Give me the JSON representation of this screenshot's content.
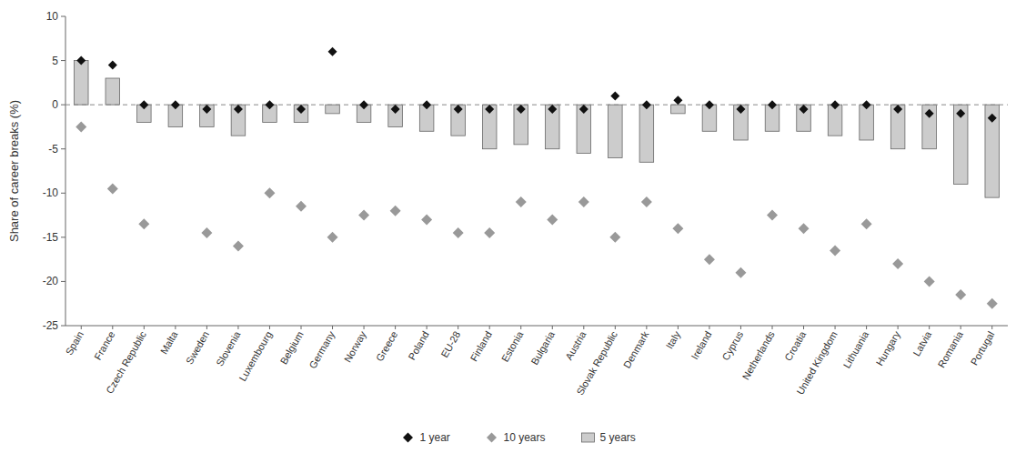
{
  "chart_data": {
    "type": "bar",
    "y_label": "Share of career breaks (%)",
    "categories": [
      "Spain",
      "France",
      "Czech Republic",
      "Malta",
      "Sweden",
      "Slovenia",
      "Luxembourg",
      "Belgium",
      "Germany",
      "Norway",
      "Greece",
      "Poland",
      "EU-28",
      "Finland",
      "Estonia",
      "Bulgaria",
      "Austria",
      "Slovak Republic",
      "Denmark",
      "Italy",
      "Ireland",
      "Cyprus",
      "Netherlands",
      "Croatia",
      "United Kingdom",
      "Lithuania",
      "Hungary",
      "Latvia",
      "Romania",
      "Portugal"
    ],
    "series": [
      {
        "name": "1 year",
        "type": "scatter",
        "marker": "diamond",
        "color": "#111111",
        "values": [
          5.0,
          4.5,
          0.0,
          0.0,
          -0.5,
          -0.5,
          0.0,
          -0.5,
          6.0,
          0.0,
          -0.5,
          0.0,
          -0.5,
          -0.5,
          -0.5,
          -0.5,
          -0.5,
          1.0,
          0.0,
          0.5,
          0.0,
          -0.5,
          0.0,
          -0.5,
          0.0,
          0.0,
          -0.5,
          -1.0,
          -1.0,
          -1.5
        ]
      },
      {
        "name": "10 years",
        "type": "scatter",
        "marker": "diamond",
        "color": "#999999",
        "values": [
          -2.5,
          -9.5,
          -13.5,
          null,
          -14.5,
          -16.0,
          -10.0,
          -11.5,
          -15.0,
          -12.5,
          -12.0,
          -13.0,
          -14.5,
          -14.5,
          -11.0,
          -13.0,
          -11.0,
          -15.0,
          -11.0,
          -14.0,
          -17.5,
          -19.0,
          -12.5,
          -14.0,
          -16.5,
          -13.5,
          -18.0,
          -20.0,
          -21.5,
          -22.5
        ]
      },
      {
        "name": "5 years",
        "type": "bar",
        "color": "#cccccc",
        "values": [
          5.0,
          3.0,
          -2.0,
          -2.5,
          -2.5,
          -3.5,
          -2.0,
          -2.0,
          -1.0,
          -2.0,
          -2.5,
          -3.0,
          -3.5,
          -5.0,
          -4.5,
          -5.0,
          -5.5,
          -6.0,
          -6.5,
          -1.0,
          -3.0,
          -4.0,
          -3.0,
          -3.0,
          -3.5,
          -4.0,
          -5.0,
          -5.0,
          -9.0,
          -10.5
        ]
      }
    ],
    "ylim": [
      -25,
      10
    ],
    "yticks": [
      -25,
      -20,
      -15,
      -10,
      -5,
      0,
      5,
      10
    ],
    "grid": false,
    "legend": "bottom"
  }
}
